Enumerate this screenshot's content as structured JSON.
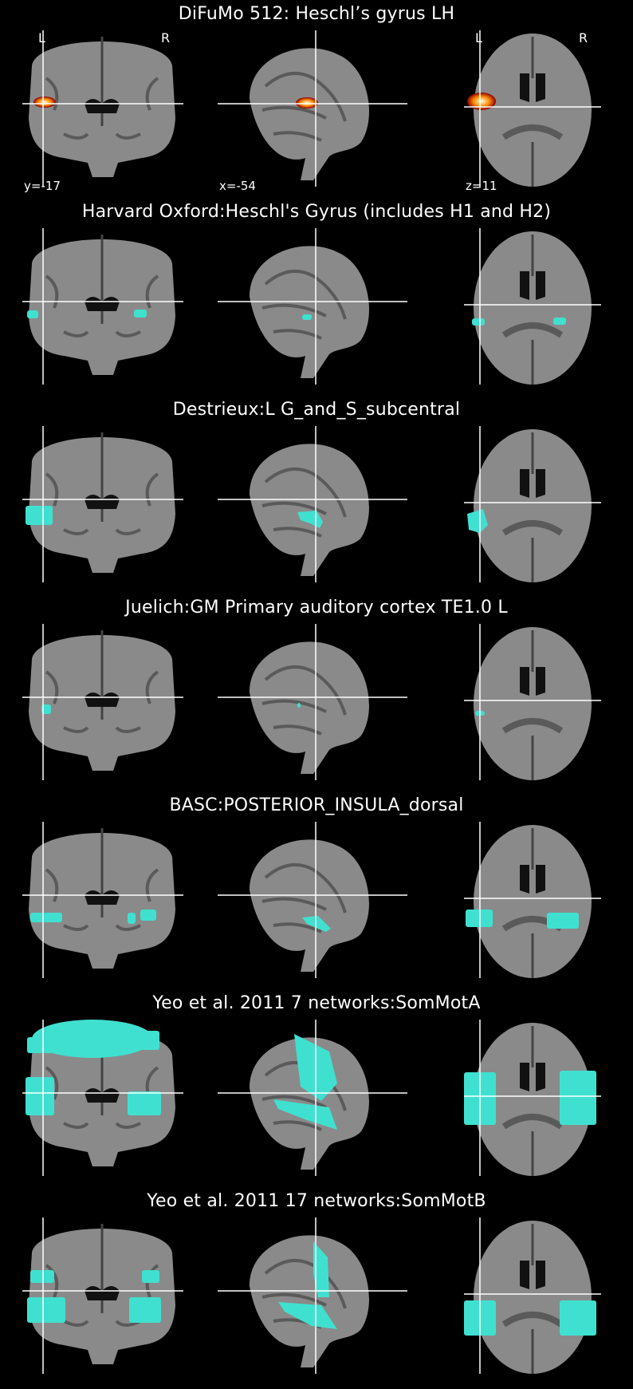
{
  "figure": {
    "panels": [
      {
        "title": "DiFuMo 512: Heschl’s gyrus LH",
        "overlay": "hot",
        "orientation": {
          "left": "L",
          "right": "R"
        },
        "coords": {
          "coronal": "y=-17",
          "sagittal": "x=-54",
          "axial": "z=11"
        }
      },
      {
        "title": "Harvard Oxford:Heschl's Gyrus (includes H1 and H2)",
        "overlay": "cyan"
      },
      {
        "title": "Destrieux:L G_and_S_subcentral",
        "overlay": "cyan"
      },
      {
        "title": "Juelich:GM Primary auditory cortex TE1.0 L",
        "overlay": "cyan"
      },
      {
        "title": "BASC:POSTERIOR_INSULA_dorsal",
        "overlay": "cyan"
      },
      {
        "title": "Yeo et al. 2011 7 networks:SomMotA",
        "overlay": "cyan"
      },
      {
        "title": "Yeo et al. 2011 17 networks:SomMotB",
        "overlay": "cyan"
      }
    ],
    "colors": {
      "background": "#000000",
      "brain_gray": "#8a8a8a",
      "overlay_cyan": "#40e0d0",
      "hot_low": "#8b0000",
      "hot_mid": "#ff8c00",
      "hot_high": "#ffffe0",
      "crosshair": "#ffffff"
    }
  }
}
